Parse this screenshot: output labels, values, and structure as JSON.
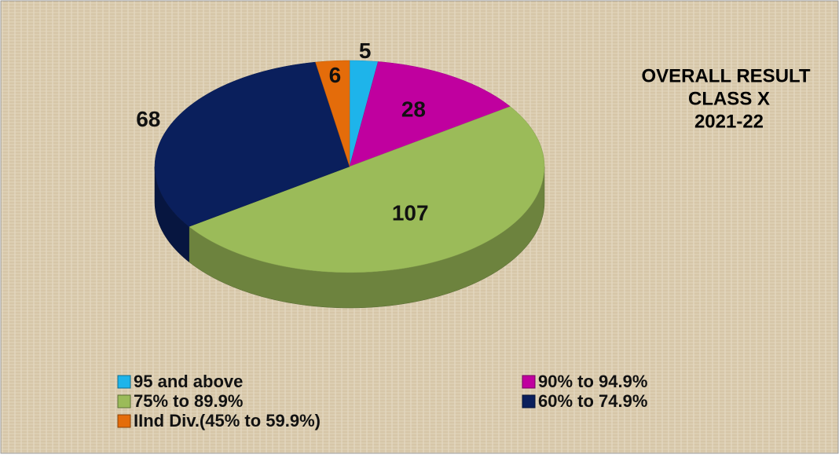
{
  "chart_data": {
    "type": "pie",
    "title": [
      "OVERALL RESULT",
      "CLASS X",
      "2021-22"
    ],
    "categories": [
      "95 and above",
      "90% to 94.9%",
      "75% to 89.9%",
      "60% to 74.9%",
      "IInd Div.(45% to 59.9%)"
    ],
    "values": [
      5,
      28,
      107,
      68,
      6
    ],
    "colors": [
      "#1eb4ea",
      "#c0009f",
      "#9bbb59",
      "#0a1f5c",
      "#e46c0a"
    ],
    "legend": "bottom"
  }
}
